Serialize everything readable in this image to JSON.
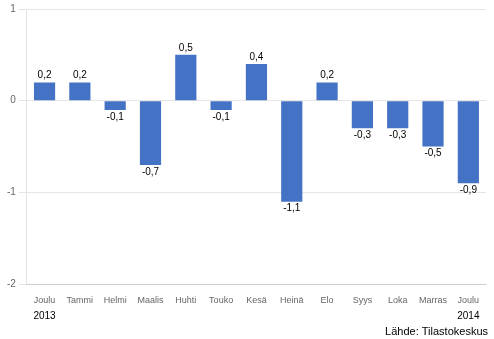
{
  "chart_data": {
    "type": "bar",
    "categories": [
      "Joulu",
      "Tammi",
      "Helmi",
      "Maalis",
      "Huhti",
      "Touko",
      "Kesä",
      "Heinä",
      "Elo",
      "Syys",
      "Loka",
      "Marras",
      "Joulu"
    ],
    "values": [
      0.2,
      0.2,
      -0.1,
      -0.7,
      0.5,
      -0.1,
      0.4,
      -1.1,
      0.2,
      -0.3,
      -0.3,
      -0.5,
      -0.9
    ],
    "value_labels": [
      "0,2",
      "0,2",
      "-0,1",
      "-0,7",
      "0,5",
      "-0,1",
      "0,4",
      "-1,1",
      "0,2",
      "-0,3",
      "-0,3",
      "-0,5",
      "-0,9"
    ],
    "data_labels": true,
    "color": "#4472C4",
    "ylim": [
      -2,
      1
    ],
    "yticks": [
      -2,
      -1,
      0,
      1
    ],
    "grid": true,
    "annotations": [
      {
        "text": "2013",
        "x": 0
      },
      {
        "text": "2014",
        "x": 12
      },
      {
        "text": "Lähde: Tilastokeskus"
      }
    ]
  }
}
